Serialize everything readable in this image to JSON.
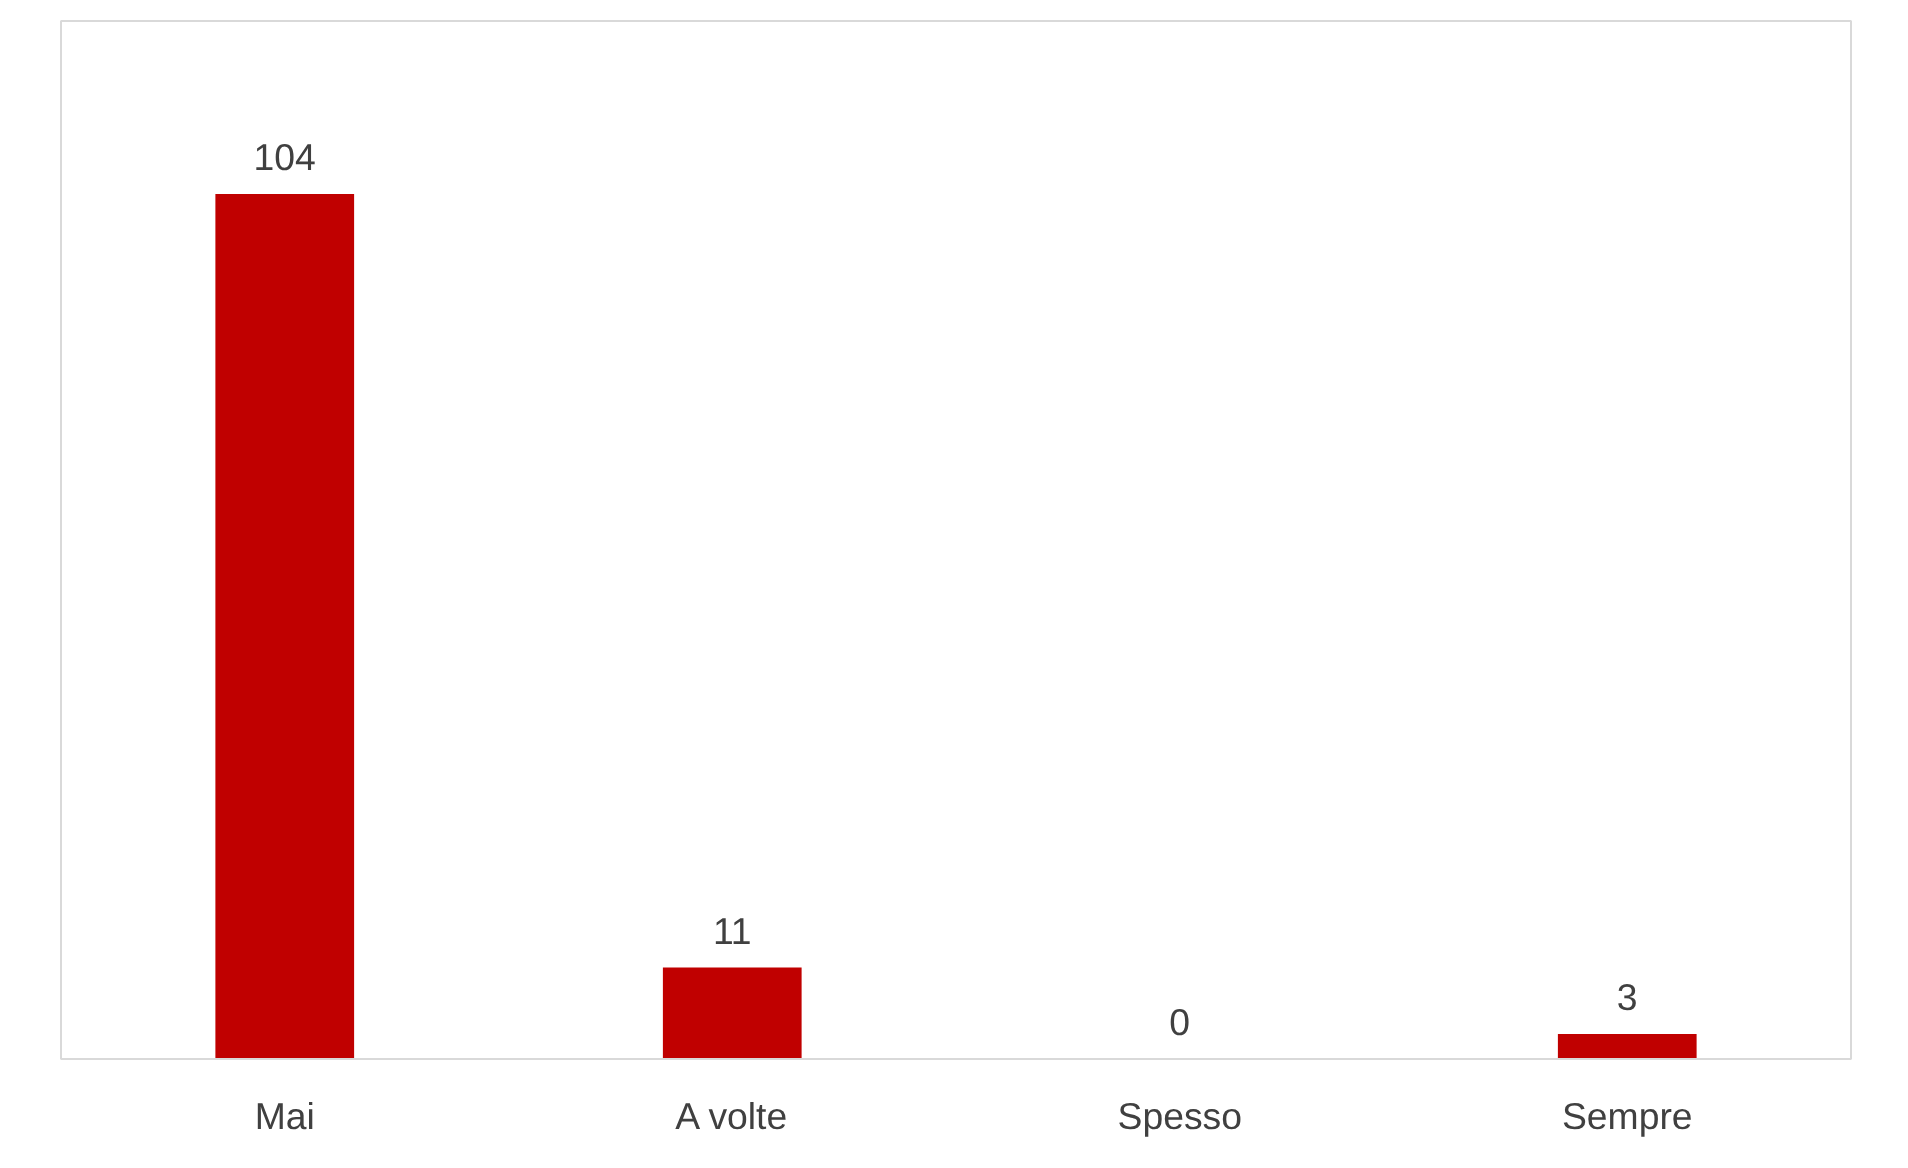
{
  "chart_data": {
    "type": "bar",
    "categories": [
      "Mai",
      "A volte",
      "Spesso",
      "Sempre"
    ],
    "values": [
      104,
      11,
      0,
      3
    ],
    "color": "#c00000",
    "data_labels": true,
    "grid": false
  }
}
